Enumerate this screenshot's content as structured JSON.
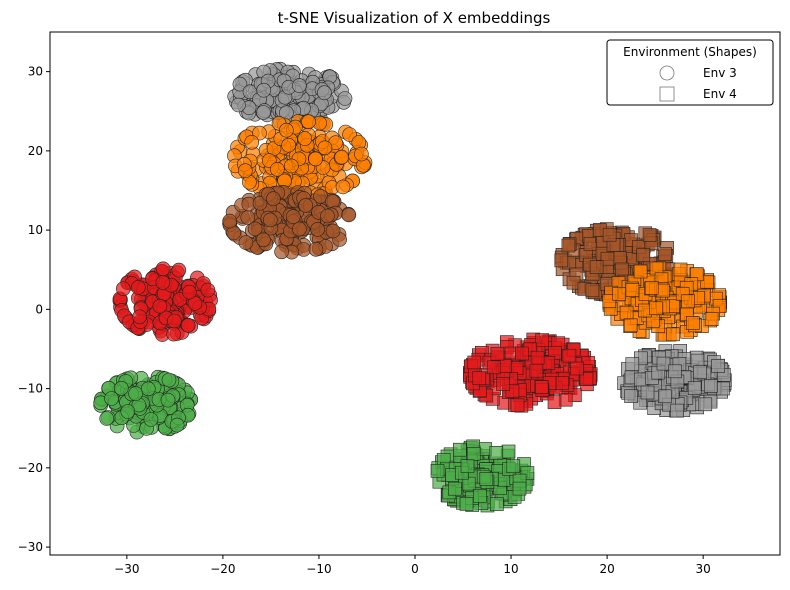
{
  "chart_data": {
    "type": "scatter",
    "title": "t-SNE Visualization of X embeddings",
    "xlabel": "",
    "ylabel": "",
    "xlim": [
      -38,
      38
    ],
    "ylim": [
      -31,
      35
    ],
    "xticks": [
      -30,
      -20,
      -10,
      0,
      10,
      20,
      30
    ],
    "yticks": [
      -30,
      -20,
      -10,
      0,
      10,
      20,
      30
    ],
    "grid": false,
    "legend": {
      "title": "Environment (Shapes)",
      "position": "top-right",
      "entries": [
        {
          "label": "Env 3",
          "marker": "circle"
        },
        {
          "label": "Env 4",
          "marker": "square"
        }
      ]
    },
    "colors": {
      "gray": "#999999",
      "orange": "#ff7f00",
      "brown": "#a65628",
      "red": "#e41a1c",
      "green": "#4daf4a"
    },
    "clusters": [
      {
        "env": "Env 3",
        "marker": "circle",
        "color": "gray",
        "center": [
          -13,
          27
        ],
        "spread": [
          5.5,
          3.2
        ],
        "count": 160
      },
      {
        "env": "Env 3",
        "marker": "circle",
        "color": "orange",
        "center": [
          -12,
          19
        ],
        "spread": [
          6.5,
          4.5
        ],
        "count": 190
      },
      {
        "env": "Env 3",
        "marker": "circle",
        "color": "brown",
        "center": [
          -13,
          11
        ],
        "spread": [
          6.0,
          3.6
        ],
        "count": 200
      },
      {
        "env": "Env 3",
        "marker": "circle",
        "color": "red",
        "center": [
          -26,
          1
        ],
        "spread": [
          4.5,
          4.0
        ],
        "count": 190
      },
      {
        "env": "Env 3",
        "marker": "circle",
        "color": "green",
        "center": [
          -28,
          -12
        ],
        "spread": [
          4.5,
          3.4
        ],
        "count": 180
      },
      {
        "env": "Env 4",
        "marker": "square",
        "color": "brown",
        "center": [
          21,
          6
        ],
        "spread": [
          5.5,
          4.0
        ],
        "count": 200
      },
      {
        "env": "Env 4",
        "marker": "square",
        "color": "orange",
        "center": [
          26,
          1
        ],
        "spread": [
          5.5,
          4.0
        ],
        "count": 180
      },
      {
        "env": "Env 4",
        "marker": "square",
        "color": "gray",
        "center": [
          27,
          -9
        ],
        "spread": [
          5.0,
          3.6
        ],
        "count": 190
      },
      {
        "env": "Env 4",
        "marker": "square",
        "color": "red",
        "center": [
          12,
          -8
        ],
        "spread": [
          6.0,
          4.0
        ],
        "count": 210
      },
      {
        "env": "Env 4",
        "marker": "square",
        "color": "green",
        "center": [
          7,
          -21
        ],
        "spread": [
          4.5,
          3.6
        ],
        "count": 200
      }
    ]
  }
}
